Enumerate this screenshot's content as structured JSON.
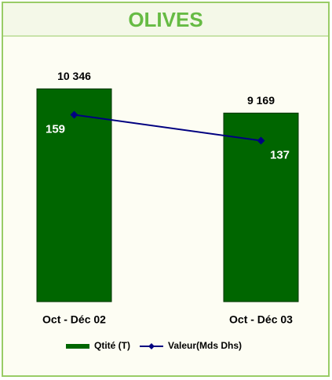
{
  "chart_data": {
    "type": "bar_line",
    "title": "OLIVES",
    "categories": [
      "Oct - Déc 02",
      "Oct - Déc 03"
    ],
    "series": [
      {
        "name": "Qtité (T)",
        "color": "#006600",
        "values": [
          10346,
          9169
        ],
        "value_labels": [
          "10 346",
          "9 169"
        ]
      },
      {
        "name": "Valeur(Mds Dhs)",
        "color": "#000080",
        "values": [
          159,
          137
        ],
        "axis": "y2"
      }
    ],
    "ylim": [
      0,
      12000
    ],
    "y2lim": [
      0,
      210
    ],
    "legend": "bottom"
  }
}
